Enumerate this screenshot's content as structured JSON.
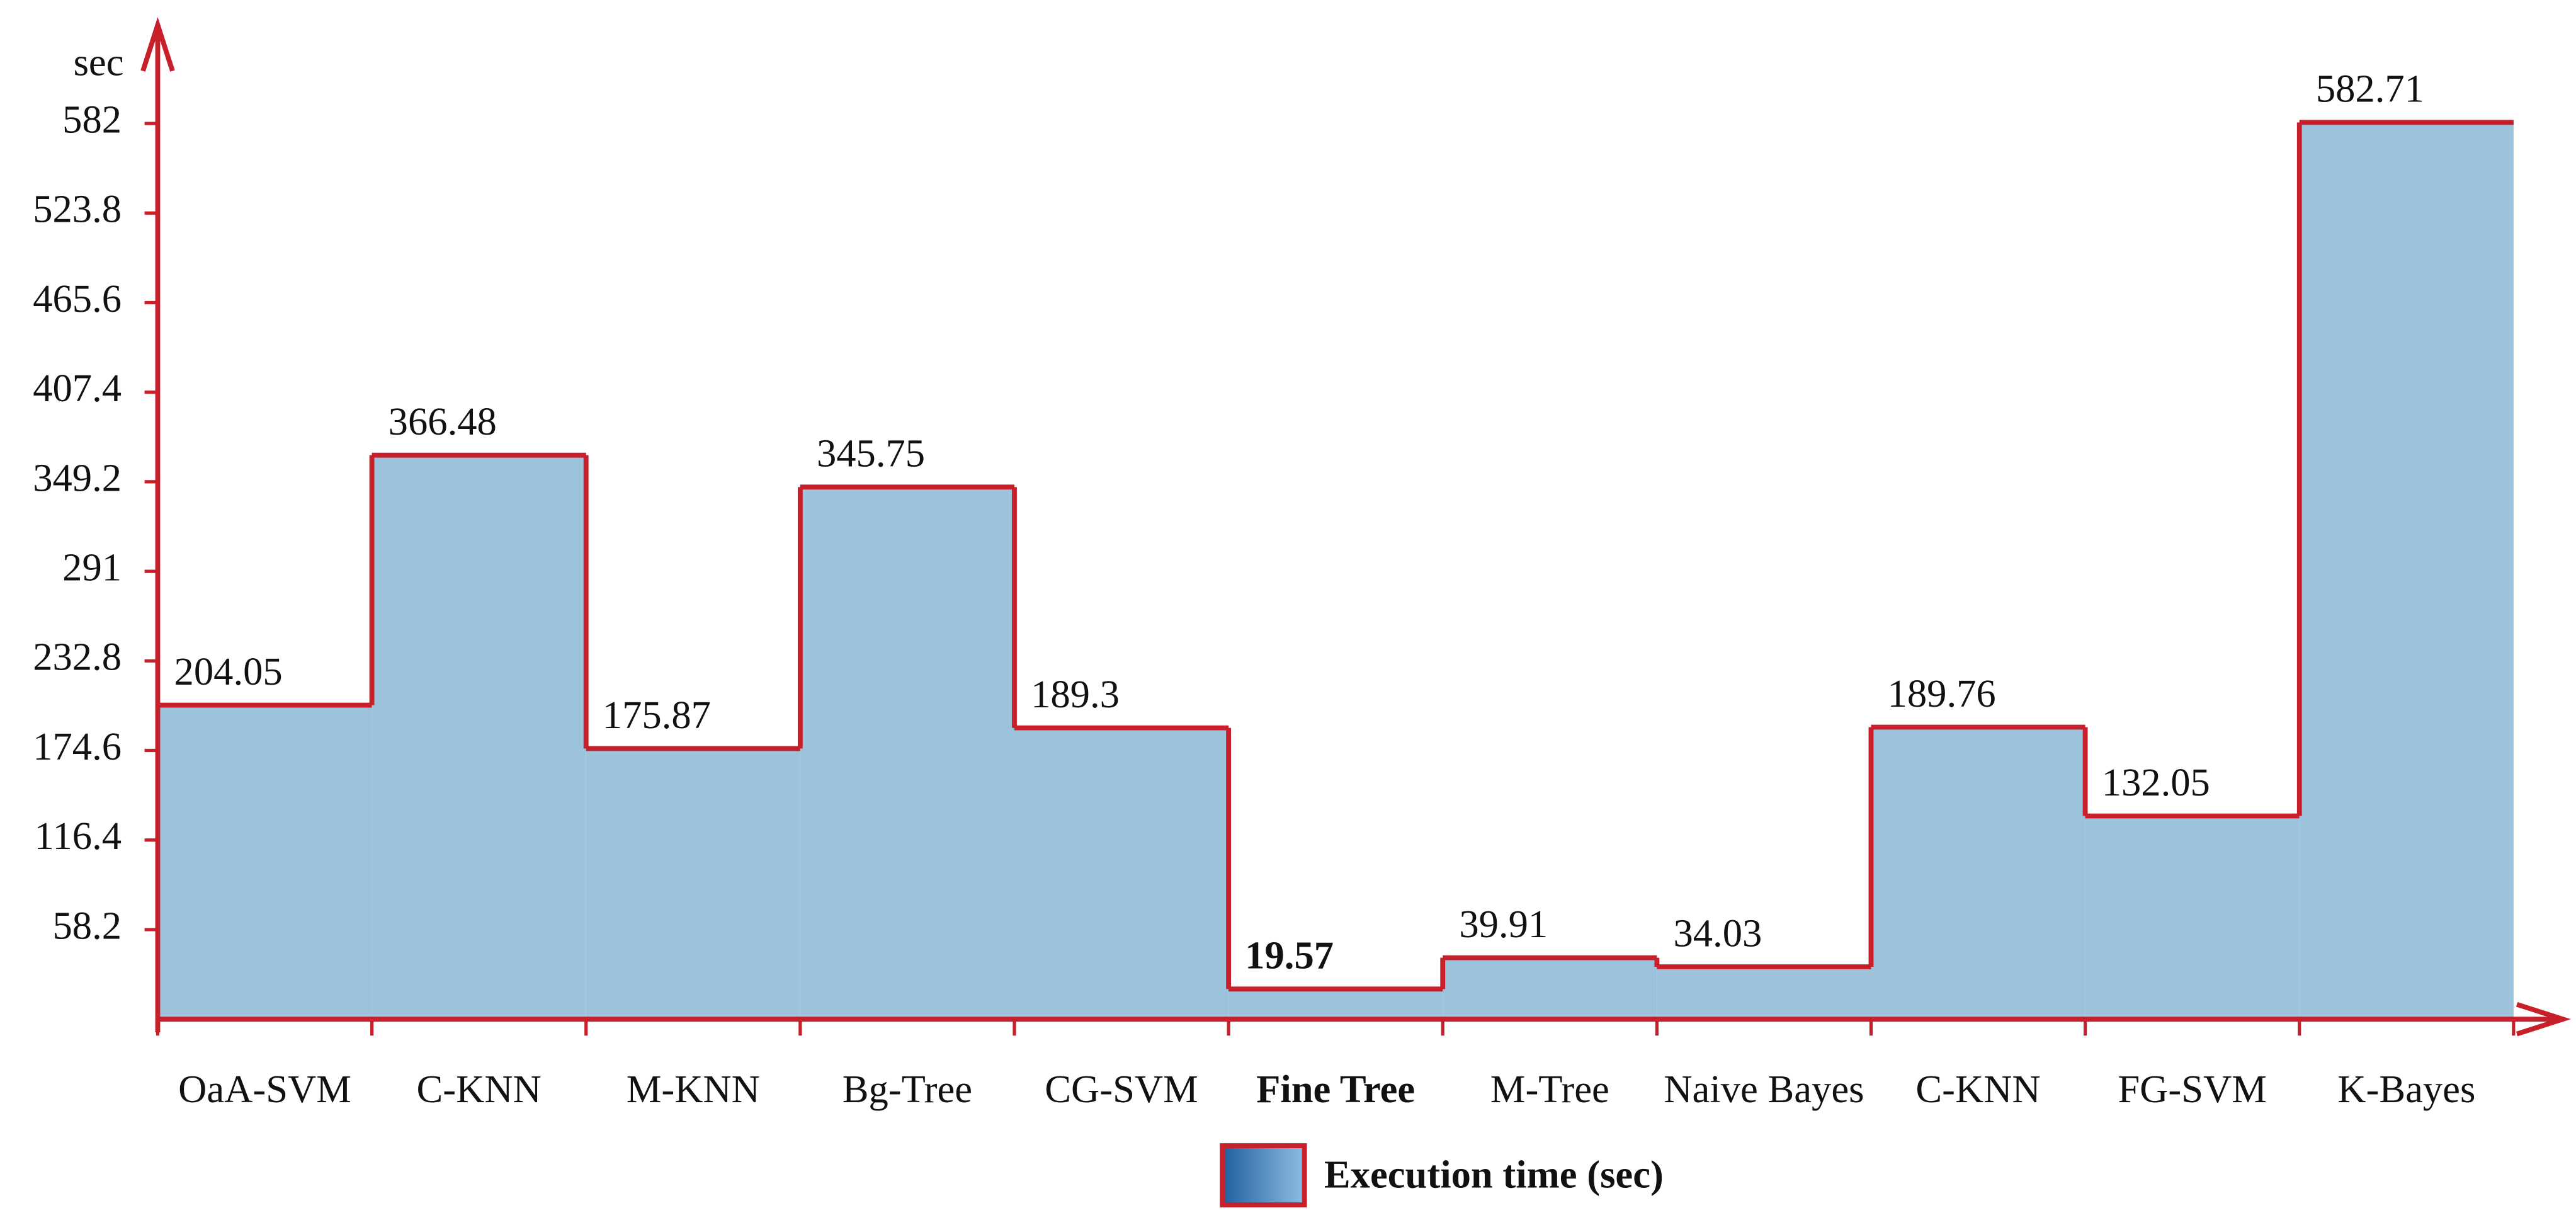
{
  "chart_data": {
    "type": "step-area",
    "y_label": "sec",
    "categories": [
      "OaA-SVM",
      "C-KNN",
      "M-KNN",
      "Bg-Tree",
      "CG-SVM",
      "Fine Tree",
      "M-Tree",
      "Naive Bayes",
      "C-KNN",
      "FG-SVM",
      "K-Bayes"
    ],
    "series": [
      {
        "name": "Execution time (sec)",
        "color": "#9dc3dc",
        "line_color": "#c8202a",
        "values": [
          204.05,
          366.48,
          175.87,
          345.75,
          189.3,
          19.57,
          39.91,
          34.03,
          189.76,
          132.05,
          582.71
        ]
      }
    ],
    "highlight": 5,
    "ylim": [
      0,
      646
    ],
    "yticks": [
      58.2,
      116.4,
      174.6,
      232.8,
      291,
      349.2,
      407.4,
      465.6,
      523.8,
      582
    ]
  }
}
